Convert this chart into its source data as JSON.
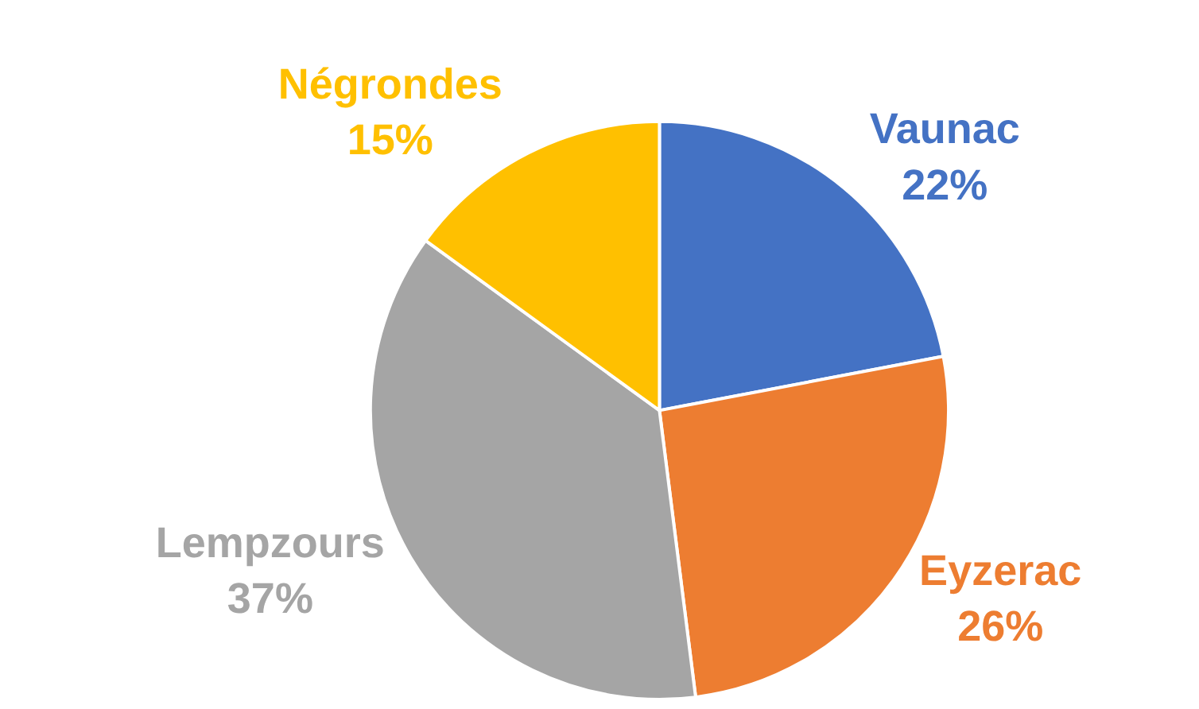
{
  "chart_data": {
    "type": "pie",
    "categories": [
      "Vaunac",
      "Eyzerac",
      "Lempzours",
      "Négrondes"
    ],
    "values": [
      22,
      26,
      37,
      15
    ],
    "value_labels": [
      "22%",
      "26%",
      "37%",
      "15%"
    ],
    "colors": [
      "#4472c4",
      "#ed7d31",
      "#a5a5a5",
      "#ffc000"
    ],
    "legend": false
  }
}
